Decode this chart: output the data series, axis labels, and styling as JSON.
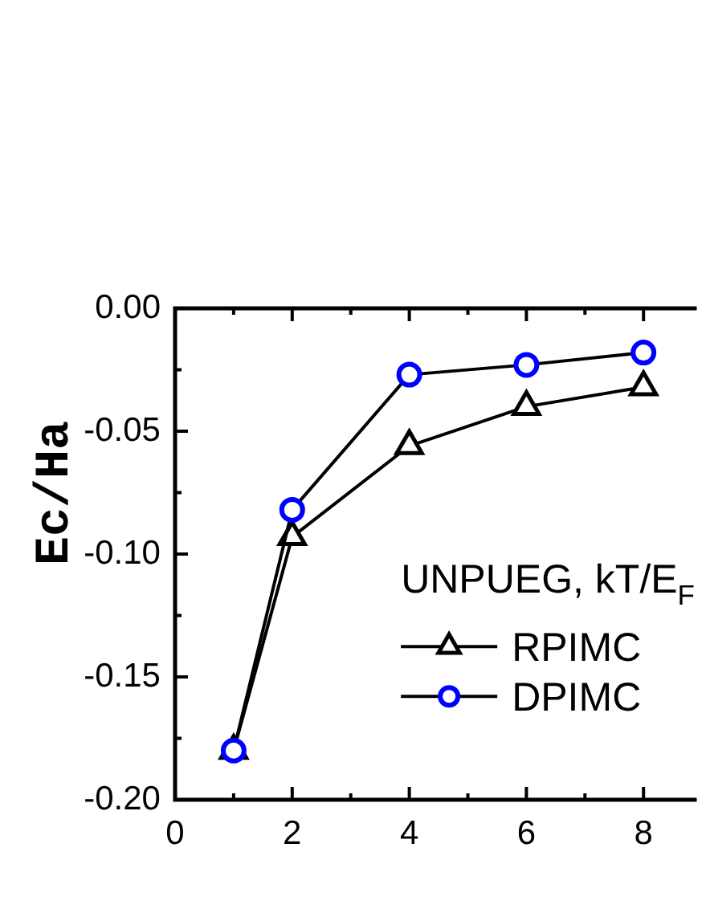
{
  "chart_data": {
    "type": "line",
    "ylabel": "Ec/Ha",
    "legend_title": "UNPUEG, kT/E$_{F}$",
    "x": [
      1,
      2,
      4,
      6,
      8
    ],
    "series": [
      {
        "name": "RPIMC",
        "color": "#000000",
        "marker": "triangle",
        "values": [
          -0.18,
          -0.093,
          -0.056,
          -0.04,
          -0.032
        ]
      },
      {
        "name": "DPIMC",
        "color": "#0000ff",
        "marker": "circle",
        "values": [
          -0.18,
          -0.082,
          -0.027,
          -0.023,
          -0.018
        ]
      }
    ],
    "xlim": [
      0,
      8.82
    ],
    "xticks": [
      0,
      {
        "value": 1,
        "label": null
      },
      2,
      {
        "value": 3,
        "label": null
      },
      4,
      {
        "value": 5,
        "label": null
      },
      6,
      {
        "value": 7,
        "label": null
      },
      8
    ],
    "ylim": [
      -0.2,
      0
    ],
    "yticks": [
      {
        "value": -0.2,
        "label": "-0.20"
      },
      {
        "value": -0.175,
        "label": null
      },
      {
        "value": -0.15,
        "label": "-0.15"
      },
      {
        "value": -0.125,
        "label": null
      },
      {
        "value": -0.1,
        "label": "-0.10"
      },
      {
        "value": -0.075,
        "label": null
      },
      {
        "value": -0.05,
        "label": "-0.05"
      },
      {
        "value": -0.025,
        "label": null
      },
      {
        "value": 0,
        "label": "0.00"
      }
    ],
    "grid": false,
    "legend": "right",
    "line_style": "solid"
  }
}
